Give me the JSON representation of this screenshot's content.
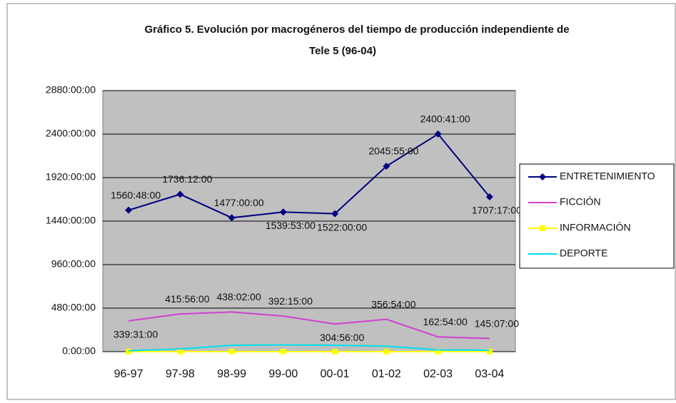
{
  "chart_data": {
    "type": "line",
    "title": [
      "Gráfico 5. Evolución por macrogéneros del tiempo de producción independiente de",
      "Tele 5 (96-04)"
    ],
    "categories": [
      "96-97",
      "97-98",
      "98-99",
      "99-00",
      "00-01",
      "01-02",
      "02-03",
      "03-04"
    ],
    "series": [
      {
        "name": "ENTRETENIMIENTO",
        "color": "#000080",
        "marker": "diamond",
        "values": [
          1560.8,
          1736.2,
          1477,
          1539.8833,
          1522,
          2045.9167,
          2400.6833,
          1707.2833
        ],
        "value_labels": [
          "1560:48:00",
          "1736:12:00",
          "1477:00:00",
          "1539:53:00",
          "1522:00:00",
          "2045:55:00",
          "2400:41:00",
          "1707:17:00"
        ]
      },
      {
        "name": "FICCIÓN",
        "color": "#d040d0",
        "values": [
          339.5167,
          415.9333,
          438.0333,
          392.25,
          304.9333,
          356.9,
          162.9,
          145.1167
        ],
        "value_labels": [
          "339:31:00",
          "415:56:00",
          "438:02:00",
          "392:15:00",
          "304:56:00",
          "356:54:00",
          "162:54:00",
          "145:07:00"
        ]
      },
      {
        "name": "INFORMACIÓN",
        "color": "#ffff00",
        "marker": "square",
        "values": [
          0,
          0,
          0,
          0,
          0,
          0,
          0,
          0
        ]
      },
      {
        "name": "DEPORTE",
        "color": "#00e0f0",
        "values": [
          10,
          30,
          70,
          75,
          70,
          60,
          20,
          15
        ]
      }
    ],
    "ylim": [
      0,
      2880
    ],
    "yticks": [
      {
        "value": 0,
        "label": "0:00:00"
      },
      {
        "value": 480,
        "label": "480:00:00"
      },
      {
        "value": 960,
        "label": "960:00:00"
      },
      {
        "value": 1440,
        "label": "1440:00:00"
      },
      {
        "value": 1920,
        "label": "1920:00:00"
      },
      {
        "value": 2400,
        "label": "2400:00:00"
      },
      {
        "value": 2880,
        "label": "2880:00:00"
      }
    ],
    "grid": true,
    "legend": "right"
  }
}
